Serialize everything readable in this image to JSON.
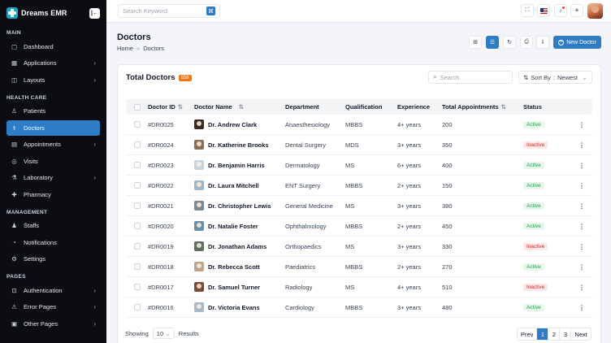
{
  "brand": {
    "name": "Dreams EMR",
    "collapse_icon": "sidebar-collapse-icon"
  },
  "sidebar": {
    "sections": [
      {
        "title": "MAIN",
        "items": [
          {
            "label": "Dashboard",
            "icon": "▢",
            "chevron": false,
            "active": false
          },
          {
            "label": "Applications",
            "icon": "▦",
            "chevron": true,
            "active": false
          },
          {
            "label": "Layouts",
            "icon": "◫",
            "chevron": true,
            "active": false
          }
        ]
      },
      {
        "title": "HEALTH CARE",
        "items": [
          {
            "label": "Patients",
            "icon": "♙",
            "chevron": false,
            "active": false
          },
          {
            "label": "Doctors",
            "icon": "⚕",
            "chevron": false,
            "active": true
          },
          {
            "label": "Appointments",
            "icon": "▤",
            "chevron": true,
            "active": false
          },
          {
            "label": "Visits",
            "icon": "◎",
            "chevron": false,
            "active": false
          },
          {
            "label": "Laboratory",
            "icon": "⚗",
            "chevron": true,
            "active": false
          },
          {
            "label": "Pharmacy",
            "icon": "✚",
            "chevron": false,
            "active": false
          }
        ]
      },
      {
        "title": "MANAGEMENT",
        "items": [
          {
            "label": "Staffs",
            "icon": "♟",
            "chevron": false,
            "active": false
          },
          {
            "label": "Notifications",
            "icon": "◔",
            "chevron": false,
            "active": false
          },
          {
            "label": "Settings",
            "icon": "⚙",
            "chevron": false,
            "active": false
          }
        ]
      },
      {
        "title": "PAGES",
        "items": [
          {
            "label": "Authentication",
            "icon": "⊡",
            "chevron": true,
            "active": false
          },
          {
            "label": "Error Pages",
            "icon": "⚠",
            "chevron": true,
            "active": false
          },
          {
            "label": "Other Pages",
            "icon": "▣",
            "chevron": true,
            "active": false
          }
        ]
      }
    ]
  },
  "topbar": {
    "search_placeholder": "Search Keyword",
    "search_shortcut_icon": "⌘"
  },
  "header": {
    "title": "Doctors",
    "breadcrumb": [
      "Home",
      "Doctors"
    ],
    "new_button": "New Doctor"
  },
  "card": {
    "title": "Total Doctors",
    "count": "658",
    "search_placeholder": "Search",
    "sort_label": "Sort By",
    "sort_value": "Newest"
  },
  "table": {
    "columns": [
      "Doctor ID",
      "Doctor Name",
      "Department",
      "Qualification",
      "Experience",
      "Total Appointments",
      "Status"
    ],
    "rows": [
      {
        "id": "#DR0025",
        "name": "Dr. Andrew Clark",
        "department": "Anaesthesiology",
        "qualification": "MBBS",
        "experience": "4+ years",
        "appointments": "200",
        "status": "Active",
        "avatar_color": "#3b2a24"
      },
      {
        "id": "#DR0024",
        "name": "Dr. Katherine Brooks",
        "department": "Dental Surgery",
        "qualification": "MDS",
        "experience": "3+ years",
        "appointments": "350",
        "status": "Inactive",
        "avatar_color": "#8a6f5c"
      },
      {
        "id": "#DR0023",
        "name": "Dr. Benjamin Harris",
        "department": "Dermatology",
        "qualification": "MS",
        "experience": "6+ years",
        "appointments": "400",
        "status": "Active",
        "avatar_color": "#c9d3dc"
      },
      {
        "id": "#DR0022",
        "name": "Dr. Laura Mitchell",
        "department": "ENT Surgery",
        "qualification": "MBBS",
        "experience": "2+ years",
        "appointments": "150",
        "status": "Active",
        "avatar_color": "#9fb6c8"
      },
      {
        "id": "#DR0021",
        "name": "Dr. Christopher Lewis",
        "department": "General Medicine",
        "qualification": "MS",
        "experience": "3+ years",
        "appointments": "380",
        "status": "Active",
        "avatar_color": "#7a8794"
      },
      {
        "id": "#DR0020",
        "name": "Dr. Natalie Foster",
        "department": "Ophthalmology",
        "qualification": "MBBS",
        "experience": "2+ years",
        "appointments": "450",
        "status": "Active",
        "avatar_color": "#6a8ea8"
      },
      {
        "id": "#DR0019",
        "name": "Dr. Jonathan Adams",
        "department": "Orthopaedics",
        "qualification": "MS",
        "experience": "3+ years",
        "appointments": "330",
        "status": "Inactive",
        "avatar_color": "#5f6f62"
      },
      {
        "id": "#DR0018",
        "name": "Dr. Rebecca Scott",
        "department": "Paediatrics",
        "qualification": "MBBS",
        "experience": "2+ years",
        "appointments": "270",
        "status": "Active",
        "avatar_color": "#b9a58e"
      },
      {
        "id": "#DR0017",
        "name": "Dr. Samuel Turner",
        "department": "Radiology",
        "qualification": "MS",
        "experience": "4+ years",
        "appointments": "510",
        "status": "Inactive",
        "avatar_color": "#7b4b3a"
      },
      {
        "id": "#DR0016",
        "name": "Dr. Victoria Evans",
        "department": "Cardiology",
        "qualification": "MBBS",
        "experience": "3+ years",
        "appointments": "480",
        "status": "Active",
        "avatar_color": "#a9b8c4"
      }
    ]
  },
  "footer": {
    "showing_label": "Showing",
    "page_size": "10",
    "results_label": "Results",
    "pages": [
      "Prev",
      "1",
      "2",
      "3",
      "Next"
    ],
    "current_page": "1"
  },
  "colors": {
    "accent": "#2e7bc6",
    "badge": "#f97316",
    "active": "#16a34a",
    "inactive": "#dc2626"
  }
}
